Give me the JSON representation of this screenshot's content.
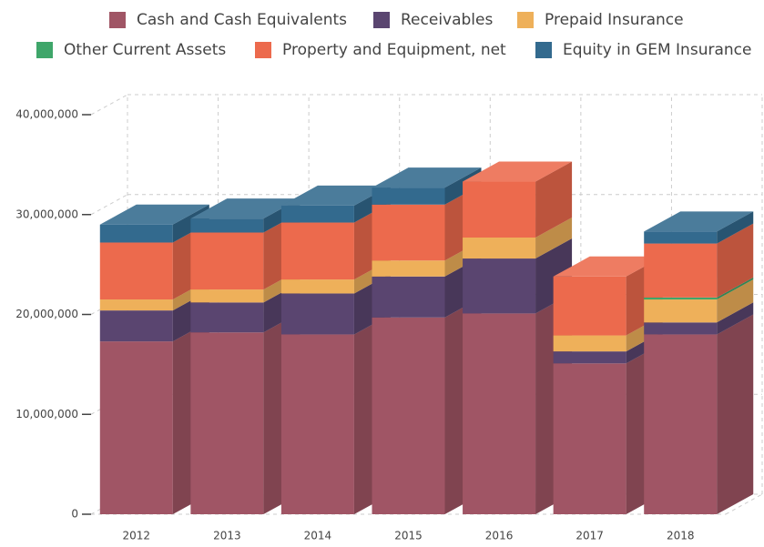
{
  "chart_data": {
    "type": "bar3d_stacked",
    "categories": [
      "2012",
      "2013",
      "2014",
      "2015",
      "2016",
      "2017",
      "2018"
    ],
    "series": [
      {
        "name": "Cash and Cash Equivalents",
        "color": "#a05565",
        "values": [
          17300000,
          18200000,
          18000000,
          19700000,
          20100000,
          15100000,
          18000000
        ]
      },
      {
        "name": "Receivables",
        "color": "#5a4570",
        "values": [
          3100000,
          3000000,
          4100000,
          4100000,
          5500000,
          1200000,
          1200000
        ]
      },
      {
        "name": "Prepaid Insurance",
        "color": "#eeb05a",
        "values": [
          1100000,
          1300000,
          1400000,
          1600000,
          2100000,
          1600000,
          2300000
        ]
      },
      {
        "name": "Other Current Assets",
        "color": "#3fa66a",
        "values": [
          0,
          0,
          0,
          0,
          0,
          0,
          200000
        ]
      },
      {
        "name": "Property and Equipment, net",
        "color": "#ec6a4d",
        "values": [
          5700000,
          5700000,
          5700000,
          5600000,
          5600000,
          5900000,
          5400000
        ]
      },
      {
        "name": "Equity in GEM Insurance",
        "color": "#336a8e",
        "values": [
          1800000,
          1400000,
          1700000,
          1700000,
          0,
          0,
          1200000
        ]
      }
    ],
    "ylim": [
      0,
      40000000
    ],
    "yticks": [
      0,
      {
        "value": 10000000,
        "label": "10,000,000"
      },
      {
        "value": 20000000,
        "label": "20,000,000"
      },
      {
        "value": 30000000,
        "label": "30,000,000"
      },
      {
        "value": 40000000,
        "label": "40,000,000"
      }
    ],
    "grid": true,
    "legend": "top",
    "stacked": true
  }
}
